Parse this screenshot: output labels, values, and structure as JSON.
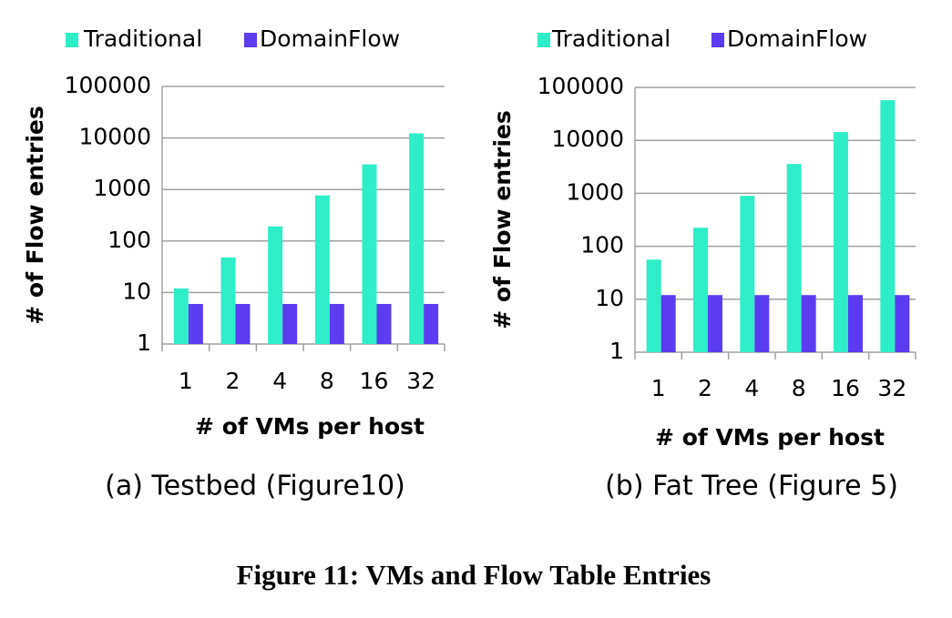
{
  "chart_data": [
    {
      "type": "bar",
      "caption": "(a) Testbed (Figure10)",
      "xlabel": "# of VMs per host",
      "ylabel": "# of Flow entries",
      "categories": [
        "1",
        "2",
        "4",
        "8",
        "16",
        "32"
      ],
      "series": [
        {
          "name": "Traditional",
          "color": "#2eeec8",
          "values": [
            12,
            48,
            192,
            768,
            3072,
            12288
          ]
        },
        {
          "name": "DomainFlow",
          "color": "#5b3cf0",
          "values": [
            6,
            6,
            6,
            6,
            6,
            6
          ]
        }
      ],
      "yscale": "log",
      "ylim": [
        1,
        100000
      ],
      "yticks": [
        1,
        10,
        100,
        1000,
        10000,
        100000
      ],
      "grid": true,
      "legend": "top"
    },
    {
      "type": "bar",
      "caption": "(b) Fat Tree (Figure 5)",
      "xlabel": "# of VMs per host",
      "ylabel": "# of Flow entries",
      "categories": [
        "1",
        "2",
        "4",
        "8",
        "16",
        "32"
      ],
      "series": [
        {
          "name": "Traditional",
          "color": "#2eeec8",
          "values": [
            56,
            224,
            896,
            3584,
            14336,
            57344
          ]
        },
        {
          "name": "DomainFlow",
          "color": "#5b3cf0",
          "values": [
            12,
            12,
            12,
            12,
            12,
            12
          ]
        }
      ],
      "yscale": "log",
      "ylim": [
        1,
        100000
      ],
      "yticks": [
        1,
        10,
        100,
        1000,
        10000,
        100000
      ],
      "grid": true,
      "legend": "top"
    }
  ],
  "figure_caption": "Figure 11: VMs and Flow Table Entries"
}
